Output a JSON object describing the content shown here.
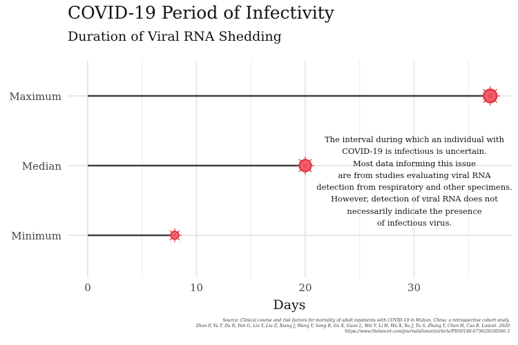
{
  "chart_data": {
    "type": "lollipop",
    "title": "COVID-19 Period of Infectivity",
    "subtitle": "Duration of Viral RNA Shedding",
    "xlabel": "Days",
    "ylabel": "",
    "xlim": [
      -1.5,
      39
    ],
    "xticks": [
      0,
      10,
      20,
      30
    ],
    "grid": true,
    "categories": [
      "Maximum",
      "Median",
      "Minimum"
    ],
    "values": [
      37,
      20,
      8
    ],
    "colors": {
      "line": "#3d3d3d",
      "point": "#ef4f5e",
      "point_edge": "#d6202f",
      "grid": "#e8e8e8"
    },
    "annotation": [
      "The interval during which an individual with",
      "COVID-19 is infectious is uncertain.",
      "Most data informing this issue",
      "are from studies evaluating viral RNA",
      "detection from respiratory and other specimens.",
      "However, detection of viral RNA does not",
      "necessarily indicate the presence",
      "of infectious virus."
    ],
    "source": [
      "Source: Clinical course and risk factors for mortality of adult inpatients with COVID-19 in Wuhan, China: a retrospective cohort study.",
      "Zhou F, Yu T, Du R, Fan G, Liu Y, Liu Z, Xiang J, Wang Y, Song B, Gu X, Guan L, Wei Y, Li H, Wu X, Xu J, Tu S, Zhang Y, Chen H, Cao B. Lancet. 2020",
      "https://www.thelancet.com/journals/lancet/article/PIIS0140-6736(20)30566-3"
    ]
  }
}
